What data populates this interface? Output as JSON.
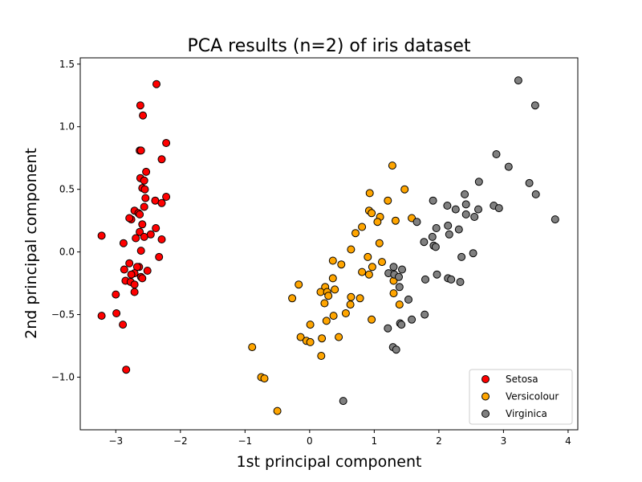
{
  "chart_data": {
    "type": "scatter",
    "title": "PCA results (n=2) of iris dataset",
    "xlabel": "1st principal component",
    "ylabel": "2nd principal component",
    "xlim": [
      -3.55,
      4.15
    ],
    "ylim": [
      -1.42,
      1.55
    ],
    "xticks": [
      -3,
      -2,
      -1,
      0,
      1,
      2,
      3,
      4
    ],
    "xtick_labels": [
      "−3",
      "−2",
      "−1",
      "0",
      "1",
      "2",
      "3",
      "4"
    ],
    "yticks": [
      -1.0,
      -0.5,
      0.0,
      0.5,
      1.0,
      1.5
    ],
    "ytick_labels": [
      "−1.0",
      "−0.5",
      "0.0",
      "0.5",
      "1.0",
      "1.5"
    ],
    "grid": false,
    "legend_position": "lower-right",
    "series": [
      {
        "name": "Setosa",
        "color": "#ff0000",
        "points": [
          [
            -2.37,
            1.34
          ],
          [
            -2.62,
            1.17
          ],
          [
            -2.58,
            1.09
          ],
          [
            -2.22,
            0.87
          ],
          [
            -2.63,
            0.81
          ],
          [
            -2.61,
            0.81
          ],
          [
            -2.29,
            0.74
          ],
          [
            -2.53,
            0.64
          ],
          [
            -2.62,
            0.59
          ],
          [
            -2.56,
            0.57
          ],
          [
            -2.59,
            0.51
          ],
          [
            -2.55,
            0.5
          ],
          [
            -2.54,
            0.43
          ],
          [
            -2.22,
            0.44
          ],
          [
            -2.39,
            0.41
          ],
          [
            -2.29,
            0.39
          ],
          [
            -2.56,
            0.36
          ],
          [
            -2.71,
            0.33
          ],
          [
            -2.65,
            0.31
          ],
          [
            -2.63,
            0.3
          ],
          [
            -2.76,
            0.26
          ],
          [
            -2.79,
            0.27
          ],
          [
            -2.59,
            0.22
          ],
          [
            -2.38,
            0.19
          ],
          [
            -2.63,
            0.16
          ],
          [
            -2.46,
            0.14
          ],
          [
            -2.56,
            0.12
          ],
          [
            -2.69,
            0.11
          ],
          [
            -2.29,
            0.1
          ],
          [
            -3.22,
            0.13
          ],
          [
            -2.88,
            0.07
          ],
          [
            -2.61,
            0.01
          ],
          [
            -2.33,
            -0.04
          ],
          [
            -2.79,
            -0.09
          ],
          [
            -2.64,
            -0.12
          ],
          [
            -2.67,
            -0.12
          ],
          [
            -2.87,
            -0.14
          ],
          [
            -2.71,
            -0.17
          ],
          [
            -2.51,
            -0.15
          ],
          [
            -2.76,
            -0.18
          ],
          [
            -2.61,
            -0.2
          ],
          [
            -2.59,
            -0.21
          ],
          [
            -2.85,
            -0.23
          ],
          [
            -2.77,
            -0.24
          ],
          [
            -2.71,
            -0.26
          ],
          [
            -2.71,
            -0.32
          ],
          [
            -3.0,
            -0.34
          ],
          [
            -2.99,
            -0.49
          ],
          [
            -3.22,
            -0.51
          ],
          [
            -2.89,
            -0.58
          ],
          [
            -2.84,
            -0.94
          ]
        ]
      },
      {
        "name": "Versicolour",
        "color": "#ffa500",
        "points": [
          [
            1.28,
            0.69
          ],
          [
            1.47,
            0.5
          ],
          [
            0.93,
            0.47
          ],
          [
            1.21,
            0.41
          ],
          [
            0.92,
            0.33
          ],
          [
            0.96,
            0.31
          ],
          [
            1.09,
            0.28
          ],
          [
            1.58,
            0.27
          ],
          [
            1.33,
            0.25
          ],
          [
            1.05,
            0.24
          ],
          [
            0.81,
            0.2
          ],
          [
            0.71,
            0.15
          ],
          [
            1.08,
            0.07
          ],
          [
            0.64,
            0.02
          ],
          [
            0.9,
            -0.04
          ],
          [
            0.36,
            -0.07
          ],
          [
            1.12,
            -0.08
          ],
          [
            0.97,
            -0.12
          ],
          [
            0.49,
            -0.1
          ],
          [
            0.81,
            -0.16
          ],
          [
            0.92,
            -0.18
          ],
          [
            0.36,
            -0.21
          ],
          [
            1.3,
            -0.23
          ],
          [
            -0.17,
            -0.26
          ],
          [
            0.24,
            -0.28
          ],
          [
            0.39,
            -0.3
          ],
          [
            0.17,
            -0.32
          ],
          [
            0.27,
            -0.32
          ],
          [
            0.78,
            -0.37
          ],
          [
            0.29,
            -0.35
          ],
          [
            1.3,
            -0.33
          ],
          [
            -0.27,
            -0.37
          ],
          [
            0.64,
            -0.36
          ],
          [
            0.23,
            -0.41
          ],
          [
            0.63,
            -0.42
          ],
          [
            1.39,
            -0.42
          ],
          [
            0.56,
            -0.49
          ],
          [
            0.37,
            -0.51
          ],
          [
            0.01,
            -0.58
          ],
          [
            0.96,
            -0.54
          ],
          [
            0.26,
            -0.55
          ],
          [
            0.45,
            -0.68
          ],
          [
            -0.14,
            -0.68
          ],
          [
            0.19,
            -0.69
          ],
          [
            -0.05,
            -0.71
          ],
          [
            0.01,
            -0.72
          ],
          [
            0.18,
            -0.83
          ],
          [
            -0.89,
            -0.76
          ],
          [
            -0.75,
            -1.0
          ],
          [
            -0.7,
            -1.01
          ],
          [
            -0.5,
            -1.27
          ]
        ]
      },
      {
        "name": "Virginica",
        "color": "#808080",
        "points": [
          [
            3.23,
            1.37
          ],
          [
            3.49,
            1.17
          ],
          [
            2.89,
            0.78
          ],
          [
            3.08,
            0.68
          ],
          [
            2.62,
            0.56
          ],
          [
            3.4,
            0.55
          ],
          [
            2.4,
            0.46
          ],
          [
            3.5,
            0.46
          ],
          [
            1.91,
            0.41
          ],
          [
            2.85,
            0.37
          ],
          [
            2.13,
            0.37
          ],
          [
            2.42,
            0.38
          ],
          [
            2.93,
            0.35
          ],
          [
            2.26,
            0.34
          ],
          [
            2.61,
            0.34
          ],
          [
            2.42,
            0.3
          ],
          [
            2.55,
            0.28
          ],
          [
            3.8,
            0.26
          ],
          [
            1.66,
            0.24
          ],
          [
            2.14,
            0.21
          ],
          [
            1.96,
            0.19
          ],
          [
            2.31,
            0.18
          ],
          [
            2.16,
            0.14
          ],
          [
            1.9,
            0.12
          ],
          [
            1.77,
            0.08
          ],
          [
            1.92,
            0.05
          ],
          [
            1.95,
            0.04
          ],
          [
            2.53,
            -0.01
          ],
          [
            2.35,
            -0.04
          ],
          [
            1.43,
            -0.14
          ],
          [
            1.22,
            -0.17
          ],
          [
            1.31,
            -0.18
          ],
          [
            1.97,
            -0.18
          ],
          [
            1.38,
            -0.2
          ],
          [
            2.14,
            -0.21
          ],
          [
            1.79,
            -0.22
          ],
          [
            2.19,
            -0.22
          ],
          [
            2.33,
            -0.24
          ],
          [
            1.39,
            -0.28
          ],
          [
            1.3,
            -0.12
          ],
          [
            1.53,
            -0.38
          ],
          [
            1.78,
            -0.5
          ],
          [
            1.58,
            -0.54
          ],
          [
            1.4,
            -0.57
          ],
          [
            1.42,
            -0.58
          ],
          [
            1.21,
            -0.61
          ],
          [
            1.29,
            -0.76
          ],
          [
            1.34,
            -0.78
          ],
          [
            0.52,
            -1.19
          ]
        ]
      }
    ]
  }
}
